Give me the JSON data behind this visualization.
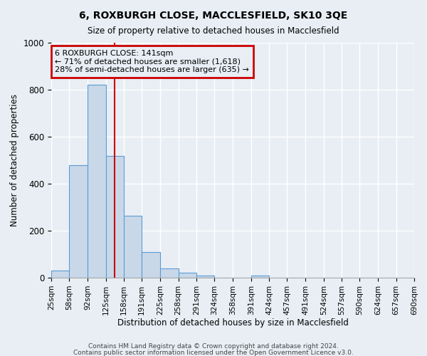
{
  "title1": "6, ROXBURGH CLOSE, MACCLESFIELD, SK10 3QE",
  "title2": "Size of property relative to detached houses in Macclesfield",
  "xlabel": "Distribution of detached houses by size in Macclesfield",
  "ylabel": "Number of detached properties",
  "footnote1": "Contains HM Land Registry data © Crown copyright and database right 2024.",
  "footnote2": "Contains public sector information licensed under the Open Government Licence v3.0.",
  "bar_edges": [
    25,
    58,
    92,
    125,
    158,
    191,
    225,
    258,
    291,
    324,
    358,
    391,
    424,
    457,
    491,
    524,
    557,
    590,
    624,
    657,
    690
  ],
  "bar_heights": [
    30,
    480,
    820,
    517,
    265,
    110,
    38,
    20,
    10,
    0,
    0,
    10,
    0,
    0,
    0,
    0,
    0,
    0,
    0,
    0
  ],
  "bar_color": "#c8d8e8",
  "bar_edgecolor": "#5b9bd5",
  "bg_color": "#e8eef4",
  "grid_color": "#ffffff",
  "vline_x": 141,
  "vline_color": "#cc0000",
  "annotation_line1": "6 ROXBURGH CLOSE: 141sqm",
  "annotation_line2": "← 71% of detached houses are smaller (1,618)",
  "annotation_line3": "28% of semi-detached houses are larger (635) →",
  "annotation_box_color": "#cc0000",
  "ylim": [
    0,
    1000
  ],
  "tick_labels": [
    "25sqm",
    "58sqm",
    "92sqm",
    "125sqm",
    "158sqm",
    "191sqm",
    "225sqm",
    "258sqm",
    "291sqm",
    "324sqm",
    "358sqm",
    "391sqm",
    "424sqm",
    "457sqm",
    "491sqm",
    "524sqm",
    "557sqm",
    "590sqm",
    "624sqm",
    "657sqm",
    "690sqm"
  ]
}
